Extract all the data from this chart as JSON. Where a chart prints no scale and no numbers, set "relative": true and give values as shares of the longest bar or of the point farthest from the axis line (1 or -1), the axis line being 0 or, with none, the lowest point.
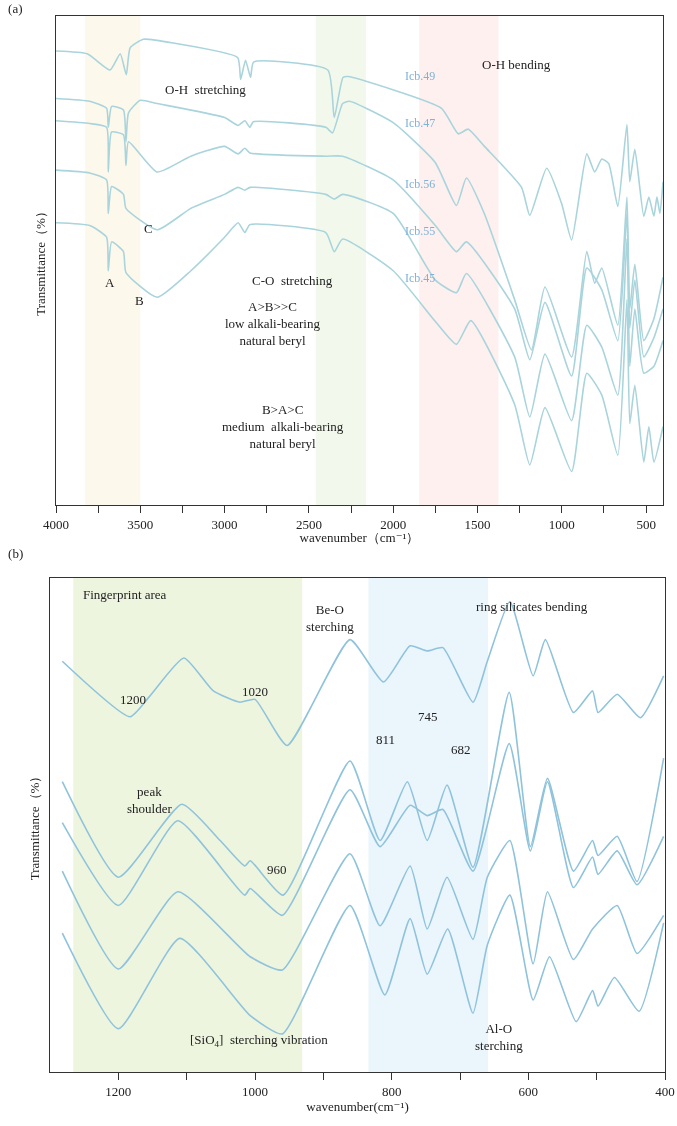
{
  "chart_data": [
    {
      "type": "line",
      "title": "(a)",
      "xlabel": "wavenumber（cm⁻¹）",
      "ylabel": "Transmittance（%）",
      "relative": true,
      "legend": false,
      "grid": false,
      "xlim": [
        4000,
        400
      ],
      "xticks": [
        4000,
        {
          "value": 3750,
          "label": null
        },
        3500,
        {
          "value": 3250,
          "label": null
        },
        3000,
        {
          "value": 2750,
          "label": null
        },
        2500,
        {
          "value": 2250,
          "label": null
        },
        2000,
        {
          "value": 1750,
          "label": null
        },
        1500,
        {
          "value": 1250,
          "label": null
        },
        1000,
        {
          "value": 750,
          "label": null
        },
        500
      ],
      "bands": [
        {
          "axis": "x",
          "from": 3827,
          "to": 3500,
          "color": "#fdf8ec"
        },
        {
          "axis": "x",
          "from": 2459,
          "to": 2161,
          "color": "#f2f9ec"
        },
        {
          "axis": "x",
          "from": 1846,
          "to": 1376,
          "color": "#fdf0ee"
        }
      ],
      "annotations": [
        "O-H  stretching",
        "O-H bending",
        "C",
        "A",
        "B",
        "C-O  stretching",
        "A>B>>C\nlow alkali-bearing\nnatural beryl",
        "B>A>C\nmedium  alkali-bearing\nnatural beryl"
      ],
      "series": [
        {
          "name": "Icb.49",
          "color": "#a9d4dc",
          "x": [
            4000,
            3815,
            3679,
            3619,
            3583,
            3560,
            3482,
            3304,
            2923,
            2905,
            2876,
            2846,
            2828,
            2388,
            2350,
            2298,
            2268,
            1715,
            1614,
            1555,
            1459,
            1239,
            1190,
            1090,
            1001,
            942,
            852,
            805,
            763,
            722,
            668,
            614,
            597,
            567,
            514,
            484,
            454,
            436,
            418,
            400
          ],
          "values": [
            0.975,
            0.969,
            0.934,
            0.969,
            0.924,
            0.982,
            1.0,
            0.992,
            0.961,
            0.914,
            0.955,
            0.918,
            0.951,
            0.934,
            0.832,
            0.918,
            0.92,
            0.852,
            0.797,
            0.807,
            0.77,
            0.682,
            0.622,
            0.723,
            0.647,
            0.569,
            0.754,
            0.715,
            0.743,
            0.733,
            0.641,
            0.817,
            0.694,
            0.764,
            0.62,
            0.661,
            0.62,
            0.661,
            0.626,
            0.694
          ]
        },
        {
          "name": "Icb.47",
          "color": "#a9d4dc",
          "x": [
            4000,
            3800,
            3700,
            3690,
            3670,
            3600,
            3585,
            3570,
            3500,
            3400,
            3000,
            2920,
            2880,
            2850,
            2830,
            2400,
            2360,
            2300,
            2260,
            2000,
            1750,
            1625,
            1566,
            1460,
            1280,
            1180,
            1100,
            942,
            852,
            805,
            763,
            668,
            614,
            597,
            567,
            514,
            454,
            400
          ],
          "values": [
            0.873,
            0.867,
            0.852,
            0.811,
            0.856,
            0.848,
            0.78,
            0.842,
            0.869,
            0.862,
            0.832,
            0.815,
            0.825,
            0.811,
            0.823,
            0.811,
            0.799,
            0.862,
            0.867,
            0.821,
            0.735,
            0.643,
            0.702,
            0.626,
            0.441,
            0.333,
            0.468,
            0.318,
            0.544,
            0.476,
            0.509,
            0.386,
            0.661,
            0.421,
            0.517,
            0.353,
            0.4,
            0.489
          ]
        },
        {
          "name": "Icb.56",
          "color": "#a9d4dc",
          "x": [
            4000,
            3800,
            3700,
            3690,
            3670,
            3600,
            3585,
            3570,
            3400,
            3200,
            3000,
            2920,
            2880,
            2850,
            2400,
            2300,
            2000,
            1750,
            1625,
            1566,
            1280,
            1190,
            1100,
            942,
            852,
            763,
            668,
            614,
            597,
            567,
            514,
            454,
            400
          ],
          "values": [
            0.825,
            0.819,
            0.811,
            0.715,
            0.801,
            0.795,
            0.729,
            0.78,
            0.715,
            0.749,
            0.77,
            0.754,
            0.766,
            0.756,
            0.749,
            0.749,
            0.698,
            0.6,
            0.544,
            0.565,
            0.421,
            0.312,
            0.435,
            0.277,
            0.509,
            0.462,
            0.353,
            0.626,
            0.38,
            0.483,
            0.318,
            0.359,
            0.421
          ]
        },
        {
          "name": "Icb.55",
          "color": "#a9d4dc",
          "x": [
            4000,
            3800,
            3700,
            3690,
            3670,
            3600,
            3585,
            3400,
            3200,
            3000,
            2920,
            2880,
            2850,
            2400,
            2350,
            2300,
            2000,
            1750,
            1625,
            1566,
            1280,
            1190,
            1100,
            942,
            852,
            763,
            668,
            614,
            597,
            567,
            514,
            454,
            400
          ],
          "values": [
            0.719,
            0.713,
            0.698,
            0.626,
            0.684,
            0.667,
            0.637,
            0.591,
            0.637,
            0.667,
            0.682,
            0.676,
            0.682,
            0.667,
            0.657,
            0.667,
            0.626,
            0.483,
            0.456,
            0.497,
            0.318,
            0.189,
            0.324,
            0.181,
            0.386,
            0.339,
            0.236,
            0.571,
            0.298,
            0.421,
            0.283,
            0.298,
            0.353
          ]
        },
        {
          "name": "Icb.45",
          "color": "#a9d4dc",
          "x": [
            4000,
            3800,
            3700,
            3690,
            3670,
            3600,
            3585,
            3400,
            3200,
            3000,
            2920,
            2880,
            2850,
            2400,
            2350,
            2300,
            2000,
            1750,
            1625,
            1540,
            1280,
            1190,
            1100,
            942,
            852,
            763,
            668,
            614,
            597,
            567,
            514,
            484,
            454,
            400
          ],
          "values": [
            0.606,
            0.6,
            0.575,
            0.503,
            0.565,
            0.544,
            0.499,
            0.446,
            0.503,
            0.575,
            0.606,
            0.585,
            0.602,
            0.585,
            0.544,
            0.571,
            0.503,
            0.394,
            0.345,
            0.396,
            0.216,
            0.086,
            0.209,
            0.072,
            0.283,
            0.236,
            0.107,
            0.441,
            0.175,
            0.257,
            0.092,
            0.168,
            0.092,
            0.168
          ]
        }
      ]
    },
    {
      "type": "line",
      "title": "(b)",
      "xlabel": "wavenumber(cm⁻¹)",
      "ylabel": "Transmittance（%）",
      "relative": true,
      "legend": false,
      "grid": false,
      "xlim": [
        1300,
        400
      ],
      "xticks": [
        1200,
        {
          "value": 1100,
          "label": null
        },
        1000,
        {
          "value": 900,
          "label": null
        },
        800,
        {
          "value": 700,
          "label": null
        },
        600,
        {
          "value": 500,
          "label": null
        },
        400
      ],
      "bands": [
        {
          "axis": "x",
          "from": 1266,
          "to": 931,
          "color": "#eef5df",
          "label": "Fingerprint area"
        },
        {
          "axis": "x",
          "from": 834,
          "to": 659,
          "color": "#eaf5fc"
        }
      ],
      "annotations": [
        "Be-O\nsterching",
        "ring silicates bending",
        "1200",
        "1020",
        "811",
        "745",
        "682",
        "peak\nshoulder",
        "960",
        "[SiO$_{4}$]  sterching vibration",
        "Al-O\nsterching"
      ],
      "series": [
        {
          "color": "#8fc3dc",
          "x": [
            1282,
            1183,
            1154,
            1104,
            1061,
            1022,
            1000,
            953,
            861,
            812,
            773,
            748,
            725,
            681,
            660,
            627,
            593,
            575,
            534,
            506,
            498,
            470,
            436,
            402
          ],
          "values": [
            0.873,
            0.755,
            0.799,
            0.88,
            0.81,
            0.786,
            0.792,
            0.694,
            0.919,
            0.829,
            0.906,
            0.895,
            0.902,
            0.786,
            0.873,
            1.0,
            0.842,
            0.919,
            0.764,
            0.81,
            0.764,
            0.803,
            0.753,
            0.842
          ]
        },
        {
          "color": "#8fc3dc",
          "x": [
            1282,
            1200,
            1107,
            1051,
            1015,
            1007,
            959,
            861,
            817,
            777,
            748,
            719,
            681,
            628,
            597,
            572,
            534,
            506,
            498,
            470,
            441,
            402
          ],
          "values": [
            0.617,
            0.414,
            0.569,
            0.492,
            0.438,
            0.449,
            0.376,
            0.661,
            0.492,
            0.617,
            0.492,
            0.61,
            0.435,
            0.807,
            0.479,
            0.624,
            0.427,
            0.492,
            0.46,
            0.501,
            0.405,
            0.667
          ]
        },
        {
          "color": "#8fc3dc",
          "x": [
            1282,
            1200,
            1113,
            1015,
            1007,
            960,
            861,
            817,
            773,
            748,
            725,
            681,
            628,
            597,
            572,
            534,
            506,
            498,
            470,
            441,
            402
          ],
          "values": [
            0.53,
            0.354,
            0.534,
            0.376,
            0.39,
            0.333,
            0.6,
            0.479,
            0.567,
            0.545,
            0.558,
            0.427,
            0.698,
            0.47,
            0.617,
            0.392,
            0.457,
            0.42,
            0.47,
            0.398,
            0.501
          ]
        },
        {
          "color": "#8fc3dc",
          "x": [
            1282,
            1200,
            1113,
            1007,
            960,
            861,
            817,
            773,
            748,
            719,
            681,
            660,
            627,
            593,
            572,
            534,
            506,
            470,
            441,
            402
          ],
          "values": [
            0.427,
            0.219,
            0.383,
            0.245,
            0.217,
            0.464,
            0.311,
            0.438,
            0.304,
            0.414,
            0.282,
            0.414,
            0.492,
            0.23,
            0.383,
            0.239,
            0.304,
            0.354,
            0.252,
            0.333
          ]
        },
        {
          "color": "#8fc3dc",
          "x": [
            1282,
            1200,
            1110,
            1007,
            960,
            861,
            810,
            773,
            748,
            718,
            681,
            660,
            627,
            593,
            569,
            530,
            506,
            498,
            474,
            438,
            402
          ],
          "values": [
            0.295,
            0.092,
            0.284,
            0.12,
            0.081,
            0.354,
            0.164,
            0.326,
            0.208,
            0.304,
            0.125,
            0.27,
            0.376,
            0.153,
            0.245,
            0.107,
            0.173,
            0.14,
            0.201,
            0.129,
            0.317
          ]
        }
      ]
    }
  ]
}
